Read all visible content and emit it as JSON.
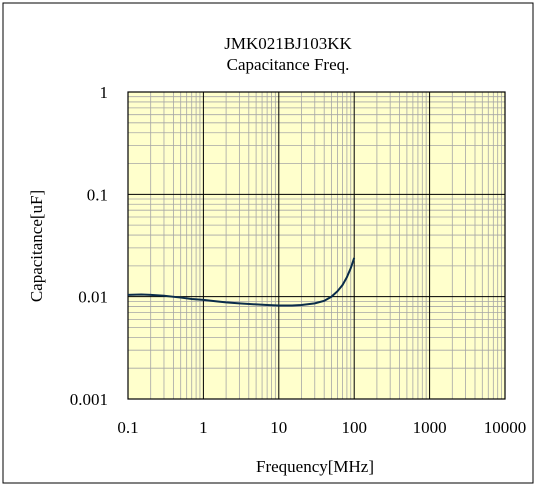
{
  "chart_data": {
    "type": "line",
    "title": "JMK021BJ103KK",
    "subtitle": "Capacitance Freq.",
    "xlabel": "Frequency[MHz]",
    "ylabel": "Capacitance[uF]",
    "x_scale": "log",
    "y_scale": "log",
    "xlim": [
      0.1,
      10000
    ],
    "ylim": [
      0.001,
      1
    ],
    "x_ticks": [
      0.1,
      1,
      10,
      100,
      1000,
      10000
    ],
    "x_tick_labels": [
      "0.1",
      "1",
      "10",
      "100",
      "1000",
      "10000"
    ],
    "y_ticks": [
      0.001,
      0.01,
      0.1,
      1
    ],
    "y_tick_labels": [
      "0.001",
      "0.01",
      "0.1",
      "1"
    ],
    "grid": true,
    "colors": {
      "plot_background": "#ffffcc",
      "minor_grid": "#a6a6a6",
      "major_grid": "#000000",
      "line": "#0a2c4a",
      "frame": "#000000"
    },
    "series": [
      {
        "x": [
          0.1,
          0.15,
          0.2,
          0.3,
          0.5,
          0.7,
          1,
          1.5,
          2,
          3,
          5,
          7,
          10,
          15,
          20,
          30,
          40,
          50,
          60,
          70,
          80,
          90,
          100
        ],
        "y": [
          0.0104,
          0.0105,
          0.0104,
          0.0102,
          0.0098,
          0.0095,
          0.0093,
          0.009,
          0.0088,
          0.0086,
          0.0084,
          0.0083,
          0.0082,
          0.0082,
          0.0083,
          0.0086,
          0.0091,
          0.01,
          0.0113,
          0.013,
          0.0155,
          0.019,
          0.024
        ]
      }
    ]
  }
}
